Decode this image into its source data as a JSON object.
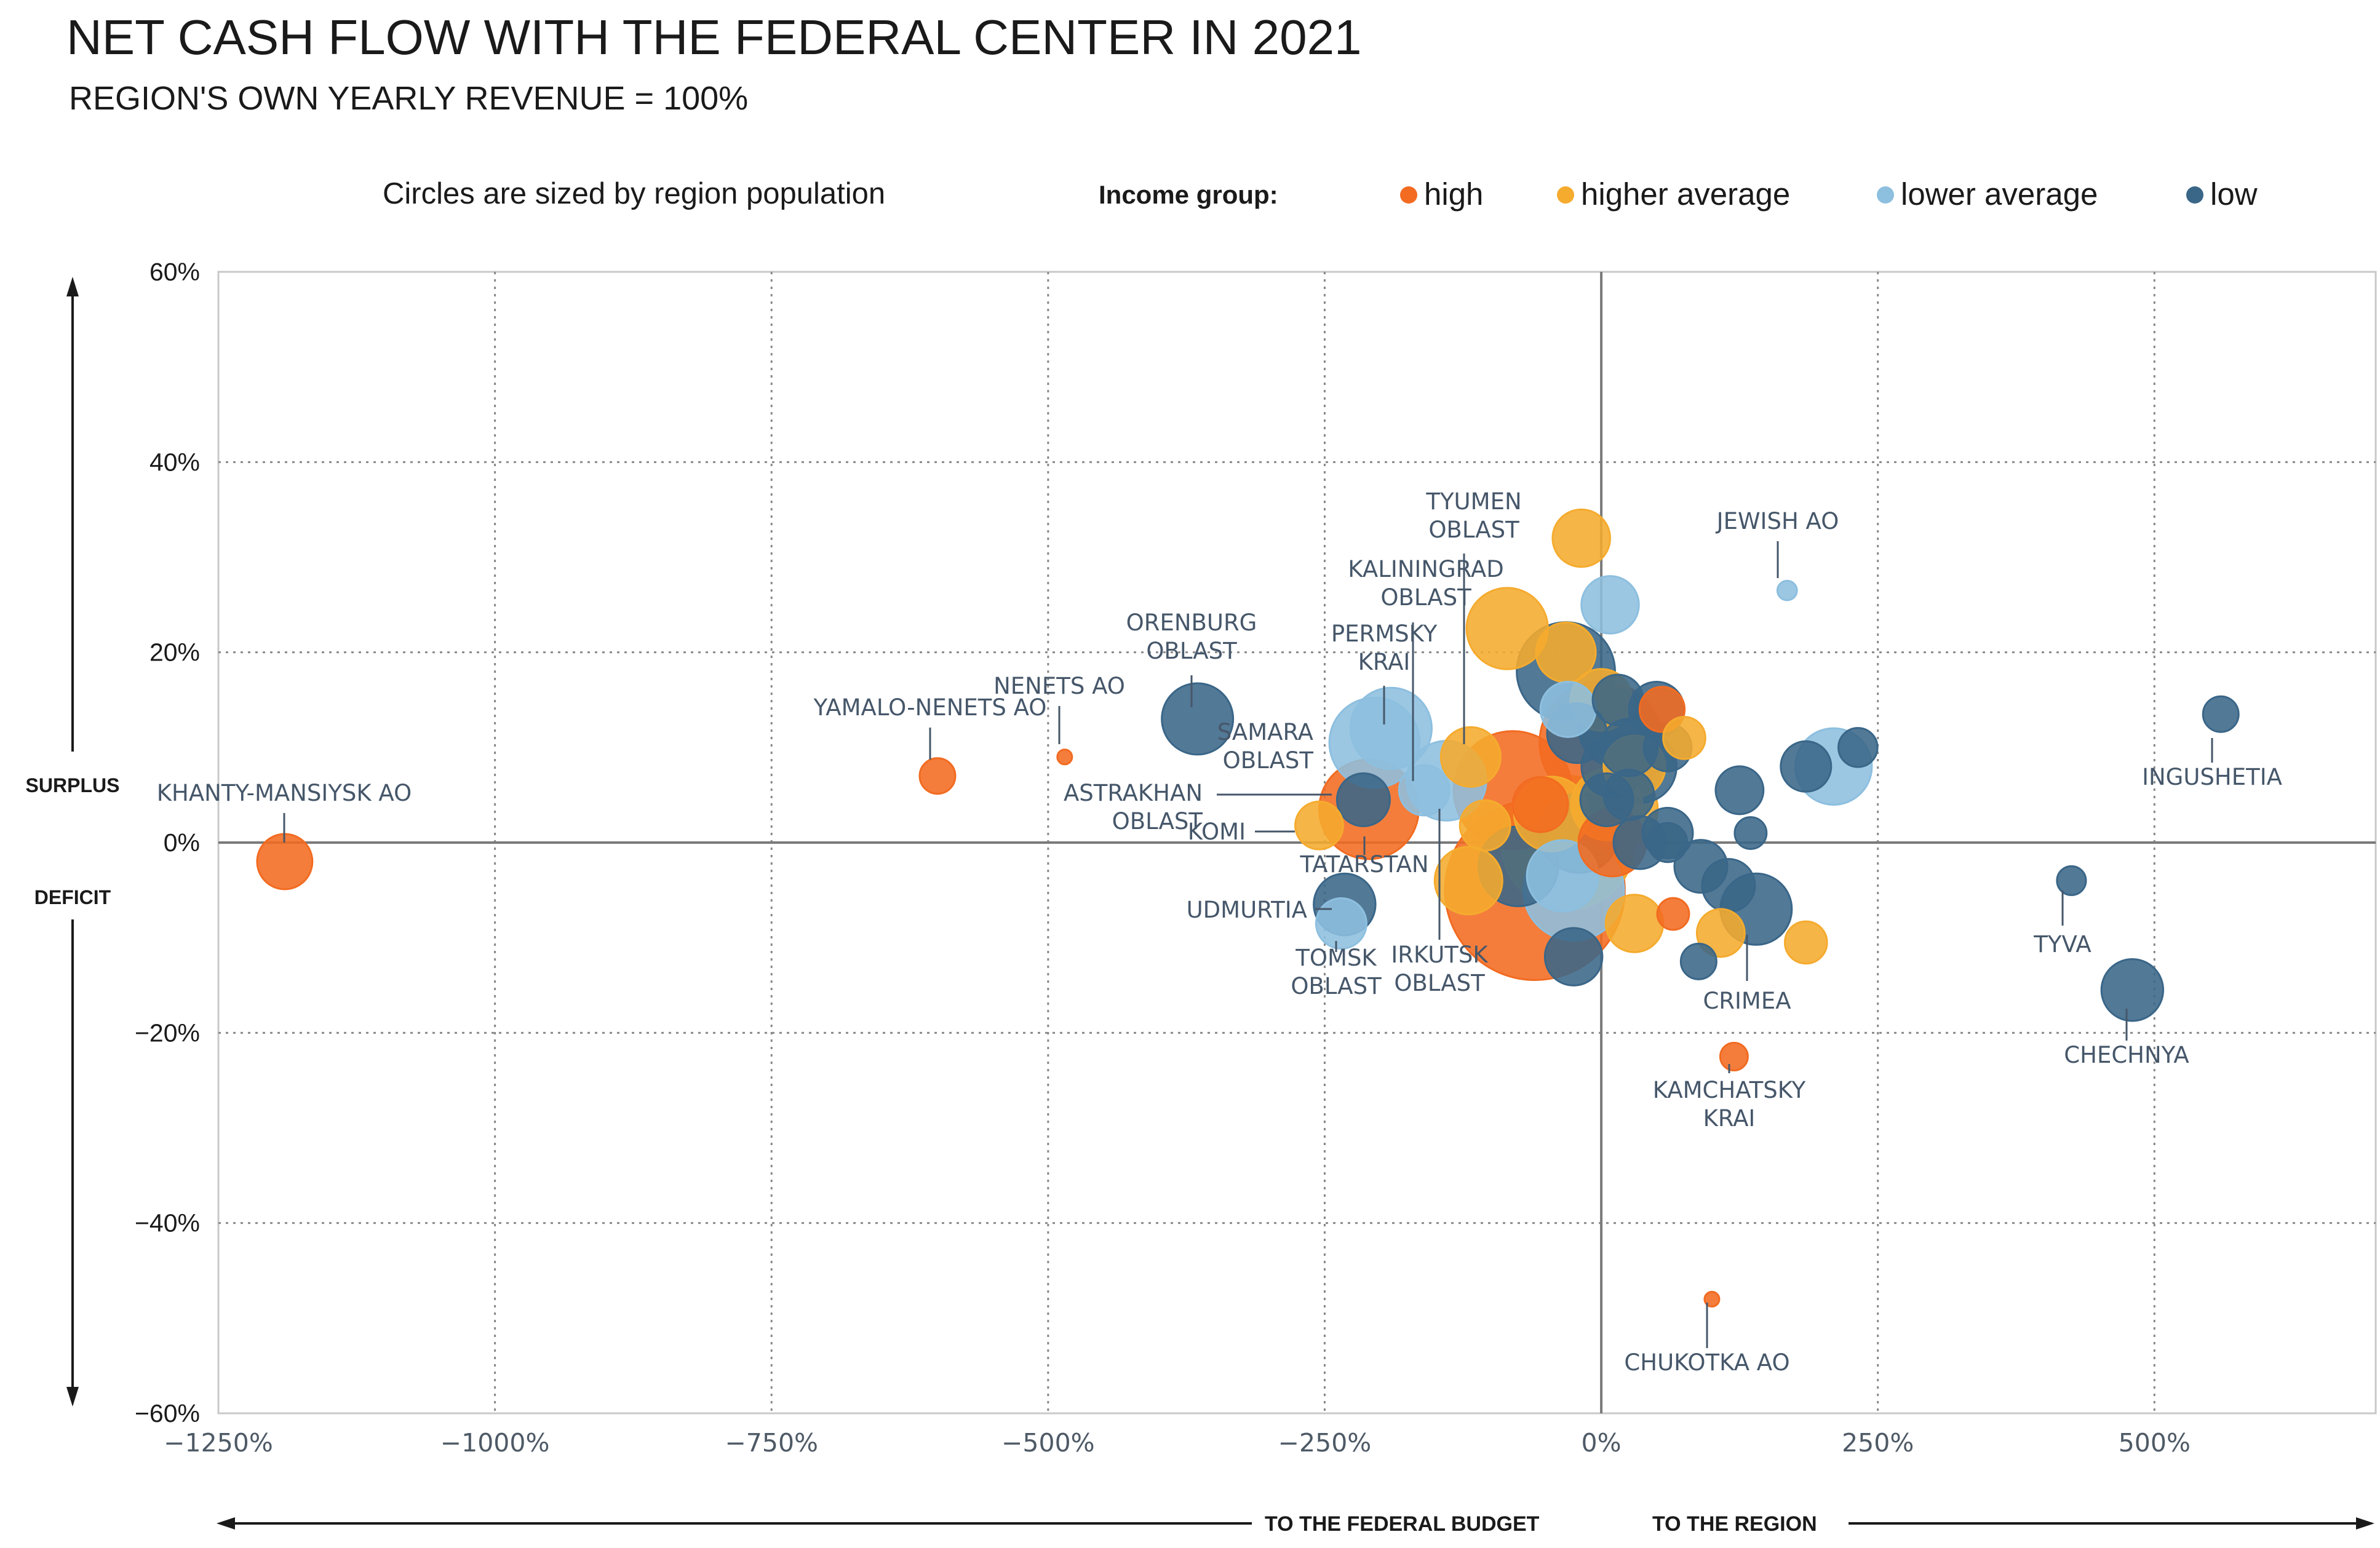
{
  "title": "NET CASH FLOW WITH THE FEDERAL CENTER IN 2021",
  "subtitle": "REGION'S OWN YEARLY REVENUE = 100%",
  "size_note": "Circles are sized by region population",
  "legend": {
    "title": "Income group:",
    "items": [
      {
        "key": "high",
        "label": "high",
        "color": "#f26b21"
      },
      {
        "key": "higher_average",
        "label": "higher average",
        "color": "#f5ab2e"
      },
      {
        "key": "lower_average",
        "label": "lower average",
        "color": "#8dbfdf"
      },
      {
        "key": "low",
        "label": "low",
        "color": "#3a6688"
      }
    ]
  },
  "y_side_labels": {
    "surplus": "SURPLUS",
    "deficit": "DEFICIT"
  },
  "x_direction_labels": {
    "left": "TO THE FEDERAL BUDGET",
    "right": "TO THE REGION"
  },
  "chart_data": {
    "type": "scatter",
    "xlim": [
      -1250,
      700
    ],
    "ylim": [
      -60,
      60
    ],
    "x_ticks": [
      {
        "value": -1250,
        "label": "−1250%"
      },
      {
        "value": -1000,
        "label": "−1000%"
      },
      {
        "value": -750,
        "label": "−750%"
      },
      {
        "value": -500,
        "label": "−500%"
      },
      {
        "value": -250,
        "label": "−250%"
      },
      {
        "value": 0,
        "label": "0%"
      },
      {
        "value": 250,
        "label": "250%"
      },
      {
        "value": 500,
        "label": "500%"
      }
    ],
    "y_ticks": [
      {
        "value": 60,
        "label": "60%"
      },
      {
        "value": 40,
        "label": "40%"
      },
      {
        "value": 20,
        "label": "20%"
      },
      {
        "value": 0,
        "label": "0%"
      },
      {
        "value": -20,
        "label": "−20%"
      },
      {
        "value": -40,
        "label": "−40%"
      },
      {
        "value": -60,
        "label": "−60%"
      }
    ],
    "grid": true,
    "size_encoding": "population",
    "points": [
      {
        "x": -1190,
        "y": -2,
        "size": 1.2,
        "group": "high"
      },
      {
        "x": -600,
        "y": 7,
        "size": 0.5,
        "group": "high"
      },
      {
        "x": -485,
        "y": 9,
        "size": 0.05,
        "group": "high"
      },
      {
        "x": -365,
        "y": 13,
        "size": 2.0,
        "group": "low"
      },
      {
        "x": -205,
        "y": 10.5,
        "size": 3.2,
        "group": "lower_average"
      },
      {
        "x": -190,
        "y": 12,
        "size": 2.6,
        "group": "lower_average"
      },
      {
        "x": -160,
        "y": 5.5,
        "size": 1.0,
        "group": "lower_average"
      },
      {
        "x": -140,
        "y": 6.5,
        "size": 2.5,
        "group": "lower_average"
      },
      {
        "x": -118,
        "y": 9,
        "size": 1.4,
        "group": "higher_average"
      },
      {
        "x": -215,
        "y": 4.5,
        "size": 1.1,
        "group": "low"
      },
      {
        "x": -210,
        "y": 3.5,
        "size": 3.9,
        "group": "high"
      },
      {
        "x": -255,
        "y": 1.8,
        "size": 0.9,
        "group": "higher_average"
      },
      {
        "x": -232,
        "y": -6.5,
        "size": 1.5,
        "group": "low"
      },
      {
        "x": -235,
        "y": -8.5,
        "size": 1.0,
        "group": "lower_average"
      },
      {
        "x": -120,
        "y": -4,
        "size": 1.8,
        "group": "higher_average"
      },
      {
        "x": -105,
        "y": 1.8,
        "size": 1.0,
        "group": "higher_average"
      },
      {
        "x": -85,
        "y": 22.5,
        "size": 2.6,
        "group": "higher_average"
      },
      {
        "x": -18,
        "y": 32,
        "size": 1.3,
        "group": "higher_average"
      },
      {
        "x": -32,
        "y": 20,
        "size": 1.4,
        "group": "higher_average"
      },
      {
        "x": 8,
        "y": 25,
        "size": 1.3,
        "group": "lower_average"
      },
      {
        "x": -80,
        "y": 5.5,
        "size": 5.5,
        "group": "high"
      },
      {
        "x": -55,
        "y": 4,
        "size": 1.2,
        "group": "high"
      },
      {
        "x": -45,
        "y": 3,
        "size": 2.2,
        "group": "higher_average"
      },
      {
        "x": -60,
        "y": -5,
        "size": 12.7,
        "group": "high"
      },
      {
        "x": -30,
        "y": 0,
        "size": 7.0,
        "group": "higher_average"
      },
      {
        "x": -75,
        "y": -2.5,
        "size": 2.5,
        "group": "low"
      },
      {
        "x": -35,
        "y": -3.5,
        "size": 2.0,
        "group": "lower_average"
      },
      {
        "x": -25,
        "y": -5,
        "size": 4.0,
        "group": "lower_average"
      },
      {
        "x": -32,
        "y": 18,
        "size": 3.8,
        "group": "low"
      },
      {
        "x": -30,
        "y": 14,
        "size": 1.2,
        "group": "lower_average"
      },
      {
        "x": -22,
        "y": 11.5,
        "size": 1.4,
        "group": "low"
      },
      {
        "x": 0,
        "y": 15,
        "size": 1.5,
        "group": "higher_average"
      },
      {
        "x": 0,
        "y": 10.5,
        "size": 6.0,
        "group": "high"
      },
      {
        "x": 5,
        "y": 4,
        "size": 2.0,
        "group": "higher_average"
      },
      {
        "x": 15,
        "y": 3.5,
        "size": 2.5,
        "group": "higher_average"
      },
      {
        "x": 10,
        "y": 0,
        "size": 1.8,
        "group": "high"
      },
      {
        "x": -20,
        "y": 1,
        "size": 2.5,
        "group": "low"
      },
      {
        "x": 5,
        "y": 4.5,
        "size": 1.1,
        "group": "low"
      },
      {
        "x": 10,
        "y": 8,
        "size": 1.5,
        "group": "low"
      },
      {
        "x": 15,
        "y": 12,
        "size": 2.4,
        "group": "low"
      },
      {
        "x": 15,
        "y": 15,
        "size": 1.0,
        "group": "low"
      },
      {
        "x": 25,
        "y": 10,
        "size": 1.3,
        "group": "low"
      },
      {
        "x": 35,
        "y": 8,
        "size": 2.1,
        "group": "low"
      },
      {
        "x": 50,
        "y": 14,
        "size": 1.2,
        "group": "low"
      },
      {
        "x": 55,
        "y": 14,
        "size": 0.8,
        "group": "high"
      },
      {
        "x": 60,
        "y": 10,
        "size": 0.9,
        "group": "low"
      },
      {
        "x": 75,
        "y": 11,
        "size": 0.7,
        "group": "higher_average"
      },
      {
        "x": 30,
        "y": 8,
        "size": 1.5,
        "group": "higher_average"
      },
      {
        "x": 25,
        "y": 5,
        "size": 1.0,
        "group": "low"
      },
      {
        "x": 35,
        "y": 0,
        "size": 1.1,
        "group": "low"
      },
      {
        "x": 60,
        "y": 1,
        "size": 1.0,
        "group": "low"
      },
      {
        "x": 60,
        "y": 0,
        "size": 0.6,
        "group": "low"
      },
      {
        "x": 90,
        "y": -2.5,
        "size": 1.1,
        "group": "low"
      },
      {
        "x": 115,
        "y": -4.5,
        "size": 1.1,
        "group": "low"
      },
      {
        "x": 140,
        "y": -7,
        "size": 2.0,
        "group": "low"
      },
      {
        "x": 125,
        "y": 5.5,
        "size": 0.9,
        "group": "low"
      },
      {
        "x": 135,
        "y": 1,
        "size": 0.4,
        "group": "low"
      },
      {
        "x": 30,
        "y": -8.5,
        "size": 1.3,
        "group": "higher_average"
      },
      {
        "x": 65,
        "y": -7.5,
        "size": 0.4,
        "group": "high"
      },
      {
        "x": 108,
        "y": -9.5,
        "size": 0.9,
        "group": "higher_average"
      },
      {
        "x": 88,
        "y": -12.5,
        "size": 0.5,
        "group": "low"
      },
      {
        "x": 185,
        "y": -10.5,
        "size": 0.7,
        "group": "higher_average"
      },
      {
        "x": -25,
        "y": -12,
        "size": 1.3,
        "group": "low"
      },
      {
        "x": 185,
        "y": 8,
        "size": 1.0,
        "group": "low"
      },
      {
        "x": 210,
        "y": 8,
        "size": 2.3,
        "group": "lower_average"
      },
      {
        "x": 232,
        "y": 10,
        "size": 0.6,
        "group": "low"
      },
      {
        "x": 168,
        "y": 26.5,
        "size": 0.15,
        "group": "lower_average"
      },
      {
        "x": 120,
        "y": -22.5,
        "size": 0.3,
        "group": "high"
      },
      {
        "x": 100,
        "y": -48,
        "size": 0.05,
        "group": "high"
      },
      {
        "x": 560,
        "y": 13.5,
        "size": 0.5,
        "group": "low"
      },
      {
        "x": 425,
        "y": -4,
        "size": 0.33,
        "group": "low"
      },
      {
        "x": 480,
        "y": -15.5,
        "size": 1.5,
        "group": "low"
      }
    ],
    "annotations": [
      {
        "lines": [
          "KHANTY-MANSIYSK AO"
        ],
        "px": [
          -1190,
          -2
        ]
      },
      {
        "lines": [
          "YAMALO-NENETS AO"
        ],
        "px": [
          -600,
          7
        ]
      },
      {
        "lines": [
          "NENETS AO"
        ],
        "px": [
          -485,
          9
        ]
      },
      {
        "lines": [
          "ORENBURG",
          "OBLAST"
        ],
        "px": [
          -365,
          13
        ]
      },
      {
        "lines": [
          "PERMSKY",
          "KRAI"
        ],
        "px": [
          -190,
          12
        ]
      },
      {
        "lines": [
          "KALININGRAD",
          "OBLAST"
        ],
        "px": [
          -160,
          5.5
        ]
      },
      {
        "lines": [
          "TYUMEN",
          "OBLAST"
        ],
        "px": [
          -118,
          9
        ]
      },
      {
        "lines": [
          "JEWISH AO"
        ],
        "px": [
          168,
          26.5
        ]
      },
      {
        "lines": [
          "SAMARA",
          "OBLAST"
        ],
        "px": [
          -205,
          10.5
        ]
      },
      {
        "lines": [
          "ASTRAKHAN",
          "OBLAST"
        ],
        "px": [
          -215,
          4.5
        ]
      },
      {
        "lines": [
          "KOMI"
        ],
        "px": [
          -255,
          1.8
        ]
      },
      {
        "lines": [
          "TATARSTAN"
        ],
        "px": [
          -210,
          3.5
        ]
      },
      {
        "lines": [
          "UDMURTIA"
        ],
        "px": [
          -232,
          -6.5
        ]
      },
      {
        "lines": [
          "TOMSK",
          "OBLAST"
        ],
        "px": [
          -235,
          -8.5
        ]
      },
      {
        "lines": [
          "IRKUTSK",
          "OBLAST"
        ],
        "px": [
          -140,
          6.5
        ]
      },
      {
        "lines": [
          "CRIMEA"
        ],
        "px": [
          140,
          -7
        ]
      },
      {
        "lines": [
          "KAMCHATSKY",
          "KRAI"
        ],
        "px": [
          120,
          -22.5
        ]
      },
      {
        "lines": [
          "CHUKOTKA AO"
        ],
        "px": [
          100,
          -48
        ]
      },
      {
        "lines": [
          "INGUSHETIA"
        ],
        "px": [
          560,
          13.5
        ]
      },
      {
        "lines": [
          "TYVA"
        ],
        "px": [
          425,
          -4
        ]
      },
      {
        "lines": [
          "CHECHNYA"
        ],
        "px": [
          480,
          -15.5
        ]
      }
    ]
  }
}
